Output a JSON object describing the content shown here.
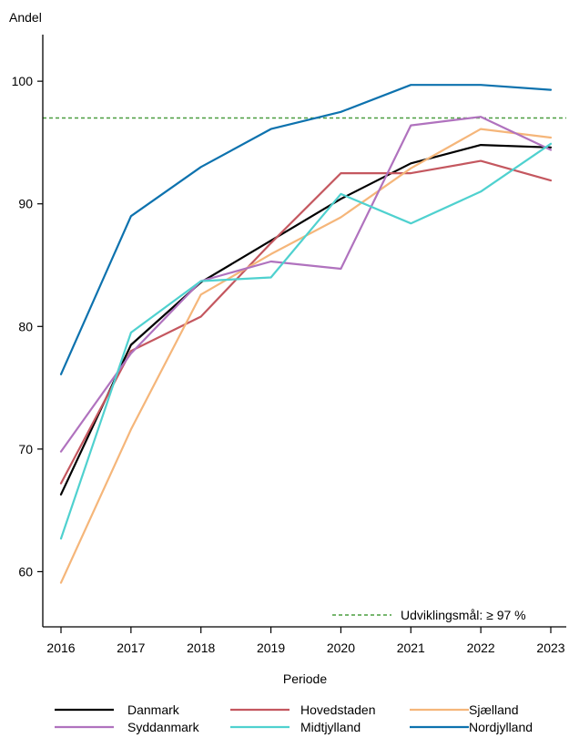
{
  "chart_data": {
    "type": "line",
    "title": "",
    "ylabel": "Andel",
    "xlabel": "Periode",
    "x": [
      "2016",
      "2017",
      "2018",
      "2019",
      "2020",
      "2021",
      "2022",
      "2023"
    ],
    "xlim": [
      2016,
      2023
    ],
    "ylim": [
      55.5,
      103.8
    ],
    "yticks": [
      60,
      70,
      80,
      90,
      100
    ],
    "grid": false,
    "legend_position": "bottom",
    "target": {
      "label": "Udviklingsmål: ≥ 97 %",
      "value": 97,
      "color": "#4a9e3f"
    },
    "series": [
      {
        "name": "Danmark",
        "color": "#000000",
        "values": [
          66.3,
          78.5,
          83.6,
          87.0,
          90.4,
          93.3,
          94.8,
          94.6
        ]
      },
      {
        "name": "Hovedstaden",
        "color": "#c4575f",
        "values": [
          67.2,
          78.0,
          80.8,
          86.8,
          92.5,
          92.5,
          93.5,
          91.9
        ]
      },
      {
        "name": "Sjælland",
        "color": "#f5b67a",
        "values": [
          59.1,
          71.6,
          82.6,
          85.9,
          88.9,
          92.9,
          96.1,
          95.4
        ]
      },
      {
        "name": "Syddanmark",
        "color": "#b072be",
        "values": [
          69.8,
          77.8,
          83.7,
          85.3,
          84.7,
          96.4,
          97.1,
          94.4
        ]
      },
      {
        "name": "Midtjylland",
        "color": "#4fd1cf",
        "values": [
          62.7,
          79.5,
          83.7,
          84.0,
          90.8,
          88.4,
          91.0,
          94.9
        ]
      },
      {
        "name": "Nordjylland",
        "color": "#0d72ae",
        "values": [
          76.1,
          89.0,
          93.0,
          96.1,
          97.5,
          99.7,
          99.7,
          99.3
        ]
      }
    ]
  }
}
